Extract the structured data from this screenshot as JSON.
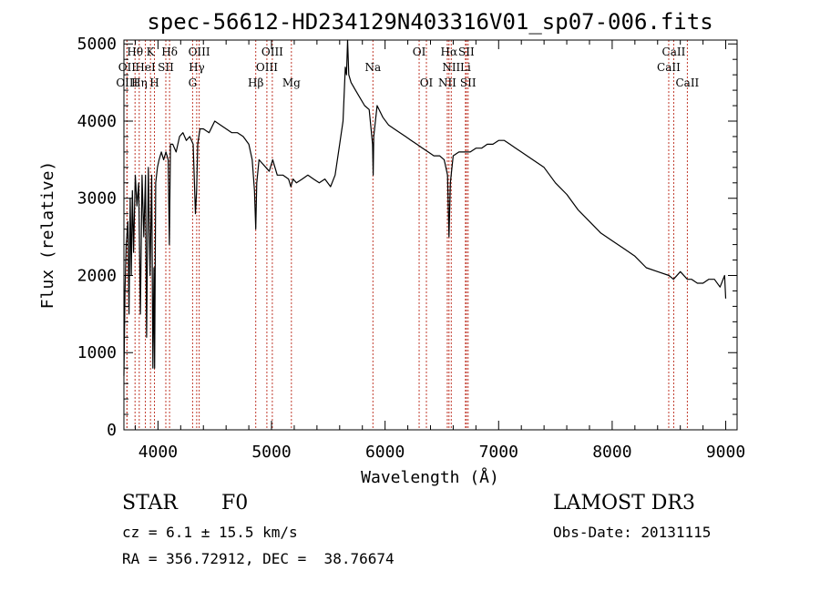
{
  "chart_data": {
    "type": "line",
    "title": "spec-56612-HD234129N403316V01_sp07-006.fits",
    "xlabel": "Wavelength (Å)",
    "ylabel": "Flux (relative)",
    "xlim": [
      3700,
      9100
    ],
    "ylim": [
      0,
      5050
    ],
    "xticks": [
      4000,
      5000,
      6000,
      7000,
      8000,
      9000
    ],
    "yticks": [
      0,
      1000,
      2000,
      3000,
      4000,
      5000
    ],
    "series": [
      {
        "name": "flux",
        "x": [
          3700,
          3710,
          3720,
          3735,
          3745,
          3755,
          3765,
          3775,
          3785,
          3800,
          3815,
          3830,
          3845,
          3860,
          3875,
          3890,
          3900,
          3915,
          3930,
          3945,
          3955,
          3965,
          3970,
          3980,
          3995,
          4010,
          4030,
          4050,
          4070,
          4090,
          4100,
          4110,
          4130,
          4160,
          4190,
          4220,
          4250,
          4280,
          4310,
          4330,
          4340,
          4350,
          4370,
          4400,
          4450,
          4500,
          4550,
          4600,
          4650,
          4700,
          4750,
          4800,
          4830,
          4850,
          4861,
          4870,
          4890,
          4920,
          4950,
          4980,
          5010,
          5050,
          5100,
          5150,
          5170,
          5180,
          5190,
          5220,
          5270,
          5320,
          5370,
          5420,
          5470,
          5520,
          5560,
          5600,
          5630,
          5650,
          5660,
          5670,
          5680,
          5700,
          5740,
          5780,
          5820,
          5860,
          5890,
          5895,
          5900,
          5930,
          5980,
          6030,
          6080,
          6130,
          6180,
          6230,
          6280,
          6330,
          6380,
          6430,
          6480,
          6520,
          6550,
          6563,
          6575,
          6600,
          6650,
          6700,
          6750,
          6800,
          6850,
          6900,
          6950,
          7000,
          7050,
          7100,
          7150,
          7200,
          7300,
          7400,
          7500,
          7600,
          7700,
          7800,
          7900,
          8000,
          8100,
          8200,
          8300,
          8400,
          8500,
          8540,
          8600,
          8662,
          8700,
          8750,
          8800,
          8850,
          8900,
          8950,
          8990,
          9000
        ],
        "y": [
          700,
          1800,
          2400,
          2700,
          1500,
          3000,
          2000,
          3100,
          2300,
          3300,
          2900,
          3200,
          1500,
          3300,
          2500,
          3300,
          1200,
          3400,
          2000,
          3300,
          800,
          2100,
          800,
          3200,
          3400,
          3500,
          3600,
          3500,
          3600,
          3500,
          2400,
          3700,
          3700,
          3600,
          3800,
          3850,
          3750,
          3800,
          3700,
          2800,
          3100,
          3700,
          3900,
          3900,
          3850,
          4000,
          3950,
          3900,
          3850,
          3850,
          3800,
          3700,
          3500,
          3100,
          2600,
          3200,
          3500,
          3450,
          3400,
          3350,
          3500,
          3300,
          3300,
          3250,
          3150,
          3200,
          3250,
          3200,
          3250,
          3300,
          3250,
          3200,
          3250,
          3150,
          3300,
          3700,
          4000,
          4700,
          4600,
          5050,
          4600,
          4500,
          4400,
          4300,
          4200,
          4150,
          3700,
          3300,
          3800,
          4200,
          4050,
          3950,
          3900,
          3850,
          3800,
          3750,
          3700,
          3650,
          3600,
          3550,
          3550,
          3500,
          3300,
          2500,
          3200,
          3550,
          3600,
          3600,
          3600,
          3650,
          3650,
          3700,
          3700,
          3750,
          3750,
          3700,
          3650,
          3600,
          3500,
          3400,
          3200,
          3050,
          2850,
          2700,
          2550,
          2450,
          2350,
          2250,
          2100,
          2050,
          2000,
          1950,
          2050,
          1950,
          1950,
          1900,
          1900,
          1950,
          1950,
          1850,
          2000,
          1700
        ]
      }
    ],
    "spectral_lines": [
      {
        "label": "Hθ",
        "wavelength": 3798,
        "row": 1
      },
      {
        "label": "OII",
        "wavelength": 3727,
        "row": 2
      },
      {
        "label": "OIII",
        "wavelength": 3727,
        "row": 3
      },
      {
        "label": "K",
        "wavelength": 3934,
        "row": 1
      },
      {
        "label": "HeI",
        "wavelength": 3889,
        "row": 2
      },
      {
        "label": "Hη",
        "wavelength": 3835,
        "row": 3
      },
      {
        "label": "Hδ",
        "wavelength": 4102,
        "row": 1
      },
      {
        "label": "SII",
        "wavelength": 4069,
        "row": 2
      },
      {
        "label": "H",
        "wavelength": 3969,
        "row": 3
      },
      {
        "label": "OIII",
        "wavelength": 4363,
        "row": 1
      },
      {
        "label": "Hγ",
        "wavelength": 4341,
        "row": 2
      },
      {
        "label": "G",
        "wavelength": 4305,
        "row": 3
      },
      {
        "label": "OIII",
        "wavelength": 5007,
        "row": 1
      },
      {
        "label": "OIII",
        "wavelength": 4959,
        "row": 2
      },
      {
        "label": "Hβ",
        "wavelength": 4861,
        "row": 3
      },
      {
        "label": "Mg",
        "wavelength": 5175,
        "row": 3
      },
      {
        "label": "Na",
        "wavelength": 5893,
        "row": 2
      },
      {
        "label": "OI",
        "wavelength": 6300,
        "row": 1
      },
      {
        "label": "OI",
        "wavelength": 6364,
        "row": 3
      },
      {
        "label": "Hα",
        "wavelength": 6563,
        "row": 1
      },
      {
        "label": "SII",
        "wavelength": 6716,
        "row": 1
      },
      {
        "label": "NII",
        "wavelength": 6583,
        "row": 2
      },
      {
        "label": "Li",
        "wavelength": 6708,
        "row": 2
      },
      {
        "label": "NII",
        "wavelength": 6548,
        "row": 3
      },
      {
        "label": "SII",
        "wavelength": 6731,
        "row": 3
      },
      {
        "label": "CaII",
        "wavelength": 8542,
        "row": 1
      },
      {
        "label": "CaII",
        "wavelength": 8498,
        "row": 2
      },
      {
        "label": "CaII",
        "wavelength": 8662,
        "row": 3
      }
    ]
  },
  "info": {
    "object_class": "STAR",
    "subclass": "F0",
    "survey": "LAMOST DR3",
    "cz": "cz = 6.1 ± 15.5 km/s",
    "obs_date": "Obs-Date: 20131115",
    "coords": "RA = 356.72912, DEC =  38.76674"
  },
  "colors": {
    "line": "#000000",
    "marker": "#c0392b"
  }
}
